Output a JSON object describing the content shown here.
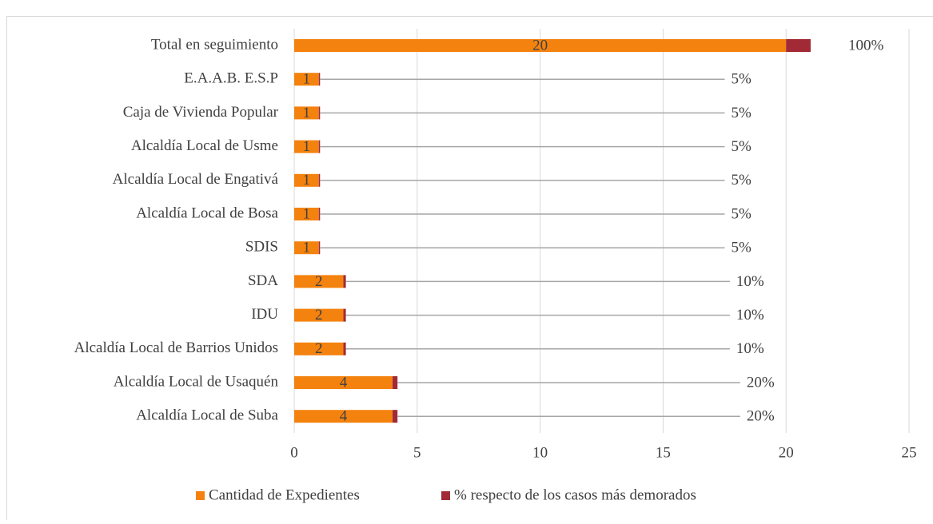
{
  "chart_data": {
    "type": "stacked-barh",
    "categories": [
      "Total en seguimiento",
      "E.A.A.B. E.S.P",
      "Caja de Vivienda Popular",
      "Alcaldía Local de Usme",
      "Alcaldía Local de Engativá",
      "Alcaldía Local de Bosa",
      "SDIS",
      "SDA",
      "IDU",
      "Alcaldía Local de Barrios Unidos",
      "Alcaldía Local de Usaquén",
      "Alcaldía Local de Suba"
    ],
    "series": [
      {
        "name": "Cantidad de Expedientes",
        "color": "#f4820e",
        "values": [
          20,
          1,
          1,
          1,
          1,
          1,
          1,
          2,
          2,
          2,
          4,
          4
        ]
      },
      {
        "name": "% respecto de los casos más demorados",
        "color": "#a12a36",
        "values": [
          1,
          0.05,
          0.05,
          0.05,
          0.05,
          0.05,
          0.05,
          0.1,
          0.1,
          0.1,
          0.2,
          0.2
        ],
        "value_labels": [
          "100%",
          "5%",
          "5%",
          "5%",
          "5%",
          "5%",
          "5%",
          "10%",
          "10%",
          "10%",
          "20%",
          "20%"
        ]
      }
    ],
    "xlim": [
      0,
      25
    ],
    "xticks": [
      0,
      5,
      10,
      15,
      20,
      25
    ],
    "grid": true,
    "legend": "bottom"
  }
}
